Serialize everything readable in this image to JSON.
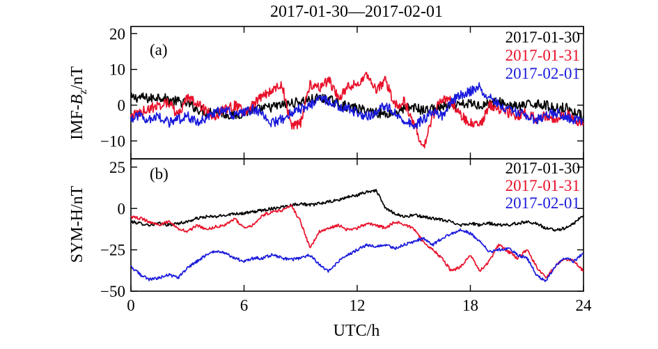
{
  "title": "2017-01-30—2017-02-01",
  "chart_data": [
    {
      "type": "line",
      "panel_label": "(a)",
      "title": "2017-01-30—2017-02-01",
      "ylabel_prefix": "IMF-",
      "ylabel_var": "B",
      "ylabel_sub": "z",
      "ylabel_suffix": "/nT",
      "ylim": [
        -15,
        22
      ],
      "yticks": [
        20,
        10,
        0,
        -10
      ],
      "ytick_labels": [
        "20",
        "10",
        "0",
        "−10"
      ],
      "xlim": [
        0,
        24
      ],
      "legend_position": "top-right",
      "series": [
        {
          "name": "2017-01-30",
          "color": "#000000",
          "x": [
            0,
            0.5,
            1,
            1.5,
            2,
            2.5,
            3,
            3.5,
            4,
            4.5,
            5,
            5.5,
            6,
            6.5,
            7,
            7.5,
            8,
            8.5,
            9,
            9.5,
            10,
            10.5,
            11,
            11.5,
            12,
            12.5,
            13,
            13.5,
            14,
            14.5,
            15,
            15.5,
            16,
            16.5,
            17,
            17.5,
            18,
            18.5,
            19,
            19.5,
            20,
            20.5,
            21,
            21.5,
            22,
            22.5,
            23,
            23.5,
            24
          ],
          "y": [
            2,
            2.2,
            1.8,
            2.5,
            1.5,
            1,
            0.5,
            -1,
            -2,
            -1.5,
            -2.5,
            -3,
            -2,
            -1.5,
            -1,
            -0.5,
            0,
            0.5,
            1,
            1.5,
            2,
            1.5,
            0.5,
            -0.5,
            -1,
            -1.5,
            -2,
            -2.5,
            -2,
            -1,
            -0.5,
            -1.5,
            -1,
            -0.5,
            -0.5,
            0,
            0.5,
            0,
            0.5,
            1,
            0,
            -0.5,
            0,
            0.5,
            0,
            -1,
            -0.5,
            -2,
            -3
          ]
        },
        {
          "name": "2017-01-31",
          "color": "#e8102a",
          "x": [
            0,
            0.5,
            1,
            1.5,
            2,
            2.5,
            3,
            3.5,
            4,
            4.5,
            5,
            5.5,
            6,
            6.5,
            7,
            7.5,
            8,
            8.5,
            9,
            9.5,
            10,
            10.5,
            11,
            11.5,
            12,
            12.5,
            13,
            13.5,
            14,
            14.5,
            15,
            15.5,
            16,
            16.5,
            17,
            17.5,
            18,
            18.5,
            19,
            19.5,
            20,
            20.5,
            21,
            21.5,
            22,
            22.5,
            23,
            23.5,
            24
          ],
          "y": [
            -3,
            -2,
            -1,
            0,
            1,
            -3,
            2,
            1,
            -2,
            -3,
            -1,
            0,
            -2,
            0,
            3,
            4,
            6,
            -6,
            -5,
            6,
            5,
            7,
            2,
            5,
            6,
            8,
            4,
            7,
            0,
            1,
            -5,
            -12,
            -3,
            2,
            1,
            -3,
            -5,
            -6,
            0,
            -1,
            -2,
            -3,
            -2,
            -4,
            -3,
            -4,
            -2,
            -4,
            -5
          ]
        },
        {
          "name": "2017-02-01",
          "color": "#1a1adc",
          "x": [
            0,
            0.5,
            1,
            1.5,
            2,
            2.5,
            3,
            3.5,
            4,
            4.5,
            5,
            5.5,
            6,
            6.5,
            7,
            7.5,
            8,
            8.5,
            9,
            9.5,
            10,
            10.5,
            11,
            11.5,
            12,
            12.5,
            13,
            13.5,
            14,
            14.5,
            15,
            15.5,
            16,
            16.5,
            17,
            17.5,
            18,
            18.5,
            19,
            19.5,
            20,
            20.5,
            21,
            21.5,
            22,
            22.5,
            23,
            23.5,
            24
          ],
          "y": [
            -4,
            -3,
            -4,
            -3,
            -5,
            -4,
            -3,
            -5,
            -4,
            -2,
            -1,
            -3,
            -2,
            -1,
            -3,
            -5,
            -4,
            -2,
            -1,
            0,
            2,
            1,
            0,
            -1,
            -2,
            -3,
            -2,
            0,
            -2,
            -4,
            -6,
            -4,
            -2,
            -3,
            1,
            3,
            4,
            5,
            2,
            0,
            -1,
            -2,
            -3,
            -4,
            -3,
            -2,
            -3,
            -4,
            -4
          ]
        }
      ]
    },
    {
      "type": "line",
      "panel_label": "(b)",
      "ylabel": "SYM-H/nT",
      "xlabel": "UTC/h",
      "ylim": [
        -50,
        30
      ],
      "yticks": [
        25,
        0,
        -25,
        -50
      ],
      "ytick_labels": [
        "25",
        "0",
        "−25",
        "−50"
      ],
      "xlim": [
        0,
        24
      ],
      "xticks": [
        0,
        6,
        12,
        18,
        24
      ],
      "xtick_labels": [
        "0",
        "6",
        "12",
        "18",
        "24"
      ],
      "legend_position": "top-right",
      "series": [
        {
          "name": "2017-01-30",
          "color": "#000000",
          "x": [
            0,
            0.5,
            1,
            1.5,
            2,
            2.5,
            3,
            3.5,
            4,
            4.5,
            5,
            5.5,
            6,
            6.5,
            7,
            7.5,
            8,
            8.5,
            9,
            9.5,
            10,
            10.5,
            11,
            11.5,
            12,
            12.5,
            13,
            13.5,
            14,
            14.5,
            15,
            15.5,
            16,
            16.5,
            17,
            17.5,
            18,
            18.5,
            19,
            19.5,
            20,
            20.5,
            21,
            21.5,
            22,
            22.5,
            23,
            23.5,
            24
          ],
          "y": [
            -8,
            -9,
            -10,
            -9,
            -10,
            -9,
            -8,
            -6,
            -5,
            -5,
            -4,
            -3,
            -3,
            -2,
            -1,
            0,
            1,
            2,
            3,
            2,
            3,
            4,
            5,
            7,
            8,
            10,
            11,
            0,
            -3,
            -5,
            -4,
            -5,
            -6,
            -7,
            -8,
            -10,
            -9,
            -10,
            -9,
            -10,
            -10,
            -9,
            -8,
            -9,
            -12,
            -13,
            -12,
            -9,
            -4
          ]
        },
        {
          "name": "2017-01-31",
          "color": "#e8102a",
          "x": [
            0,
            0.5,
            1,
            1.5,
            2,
            2.5,
            3,
            3.5,
            4,
            4.5,
            5,
            5.5,
            6,
            6.5,
            7,
            7.5,
            8,
            8.5,
            9,
            9.5,
            10,
            10.5,
            11,
            11.5,
            12,
            12.5,
            13,
            13.5,
            14,
            14.5,
            15,
            15.5,
            16,
            16.5,
            17,
            17.5,
            18,
            18.5,
            19,
            19.5,
            20,
            20.5,
            21,
            21.5,
            22,
            22.5,
            23,
            23.5,
            24
          ],
          "y": [
            -5,
            -6,
            -8,
            -10,
            -8,
            -12,
            -14,
            -10,
            -13,
            -11,
            -10,
            -6,
            -12,
            -10,
            -4,
            -2,
            -1,
            2,
            -8,
            -24,
            -14,
            -12,
            -10,
            -13,
            -12,
            -9,
            -10,
            -12,
            -8,
            -10,
            -12,
            -20,
            -25,
            -30,
            -38,
            -35,
            -28,
            -38,
            -32,
            -22,
            -26,
            -30,
            -25,
            -35,
            -42,
            -35,
            -30,
            -32,
            -38
          ]
        },
        {
          "name": "2017-02-01",
          "color": "#1a1adc",
          "x": [
            0,
            0.5,
            1,
            1.5,
            2,
            2.5,
            3,
            3.5,
            4,
            4.5,
            5,
            5.5,
            6,
            6.5,
            7,
            7.5,
            8,
            8.5,
            9,
            9.5,
            10,
            10.5,
            11,
            11.5,
            12,
            12.5,
            13,
            13.5,
            14,
            14.5,
            15,
            15.5,
            16,
            16.5,
            17,
            17.5,
            18,
            18.5,
            19,
            19.5,
            20,
            20.5,
            21,
            21.5,
            22,
            22.5,
            23,
            23.5,
            24
          ],
          "y": [
            -35,
            -40,
            -43,
            -42,
            -40,
            -42,
            -36,
            -32,
            -28,
            -26,
            -27,
            -30,
            -32,
            -30,
            -30,
            -28,
            -30,
            -31,
            -30,
            -28,
            -34,
            -38,
            -32,
            -28,
            -25,
            -22,
            -23,
            -22,
            -24,
            -22,
            -20,
            -18,
            -22,
            -18,
            -15,
            -13,
            -15,
            -20,
            -26,
            -25,
            -24,
            -28,
            -30,
            -40,
            -44,
            -35,
            -30,
            -32,
            -27
          ]
        }
      ]
    }
  ]
}
